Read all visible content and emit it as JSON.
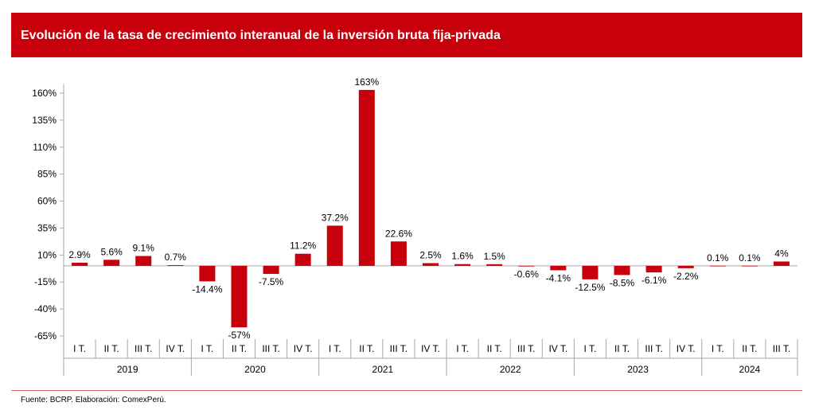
{
  "title": "Evolución de la tasa de crecimiento interanual de la inversión bruta fija-privada",
  "source": "Fuente: BCRP. Elaboración: ComexPerú.",
  "colors": {
    "bar": "#c8000b",
    "title_bg": "#c8000b",
    "title_text": "#ffffff",
    "axis": "#a6a6a6"
  },
  "chart_data": {
    "type": "bar",
    "title": "Evolución de la tasa de crecimiento interanual de la inversión bruta fija-privada",
    "ylim": [
      -65,
      160
    ],
    "yticks": [
      -65,
      -40,
      -15,
      10,
      35,
      60,
      85,
      110,
      135,
      160
    ],
    "ytick_labels": [
      "-65%",
      "-40%",
      "-15%",
      "10%",
      "35%",
      "60%",
      "85%",
      "110%",
      "135%",
      "160%"
    ],
    "grid": false,
    "legend": "none",
    "categories": [
      "I T.",
      "II T.",
      "III T.",
      "IV T.",
      "I T.",
      "II T.",
      "III T.",
      "IV T.",
      "I T.",
      "II T.",
      "III T.",
      "IV T.",
      "I T.",
      "II T.",
      "III T.",
      "IV T.",
      "I T.",
      "II T.",
      "III T.",
      "IV T.",
      "I T.",
      "II T.",
      "III T."
    ],
    "groups": [
      {
        "label": "2019",
        "count": 4
      },
      {
        "label": "2020",
        "count": 4
      },
      {
        "label": "2021",
        "count": 4
      },
      {
        "label": "2022",
        "count": 4
      },
      {
        "label": "2023",
        "count": 4
      },
      {
        "label": "2024",
        "count": 3
      }
    ],
    "values": [
      2.9,
      5.6,
      9.1,
      0.7,
      -14.4,
      -57,
      -7.5,
      11.2,
      37.2,
      163,
      22.6,
      2.5,
      1.6,
      1.5,
      -0.6,
      -4.1,
      -12.5,
      -8.5,
      -6.1,
      -2.2,
      0.1,
      0.1,
      4
    ],
    "data_labels": [
      "2.9%",
      "5.6%",
      "9.1%",
      "0.7%",
      "-14.4%",
      "-57%",
      "-7.5%",
      "11.2%",
      "37.2%",
      "163%",
      "22.6%",
      "2.5%",
      "1.6%",
      "1.5%",
      "-0.6%",
      "-4.1%",
      "-12.5%",
      "-8.5%",
      "-6.1%",
      "-2.2%",
      "0.1%",
      "0.1%",
      "4%"
    ]
  }
}
